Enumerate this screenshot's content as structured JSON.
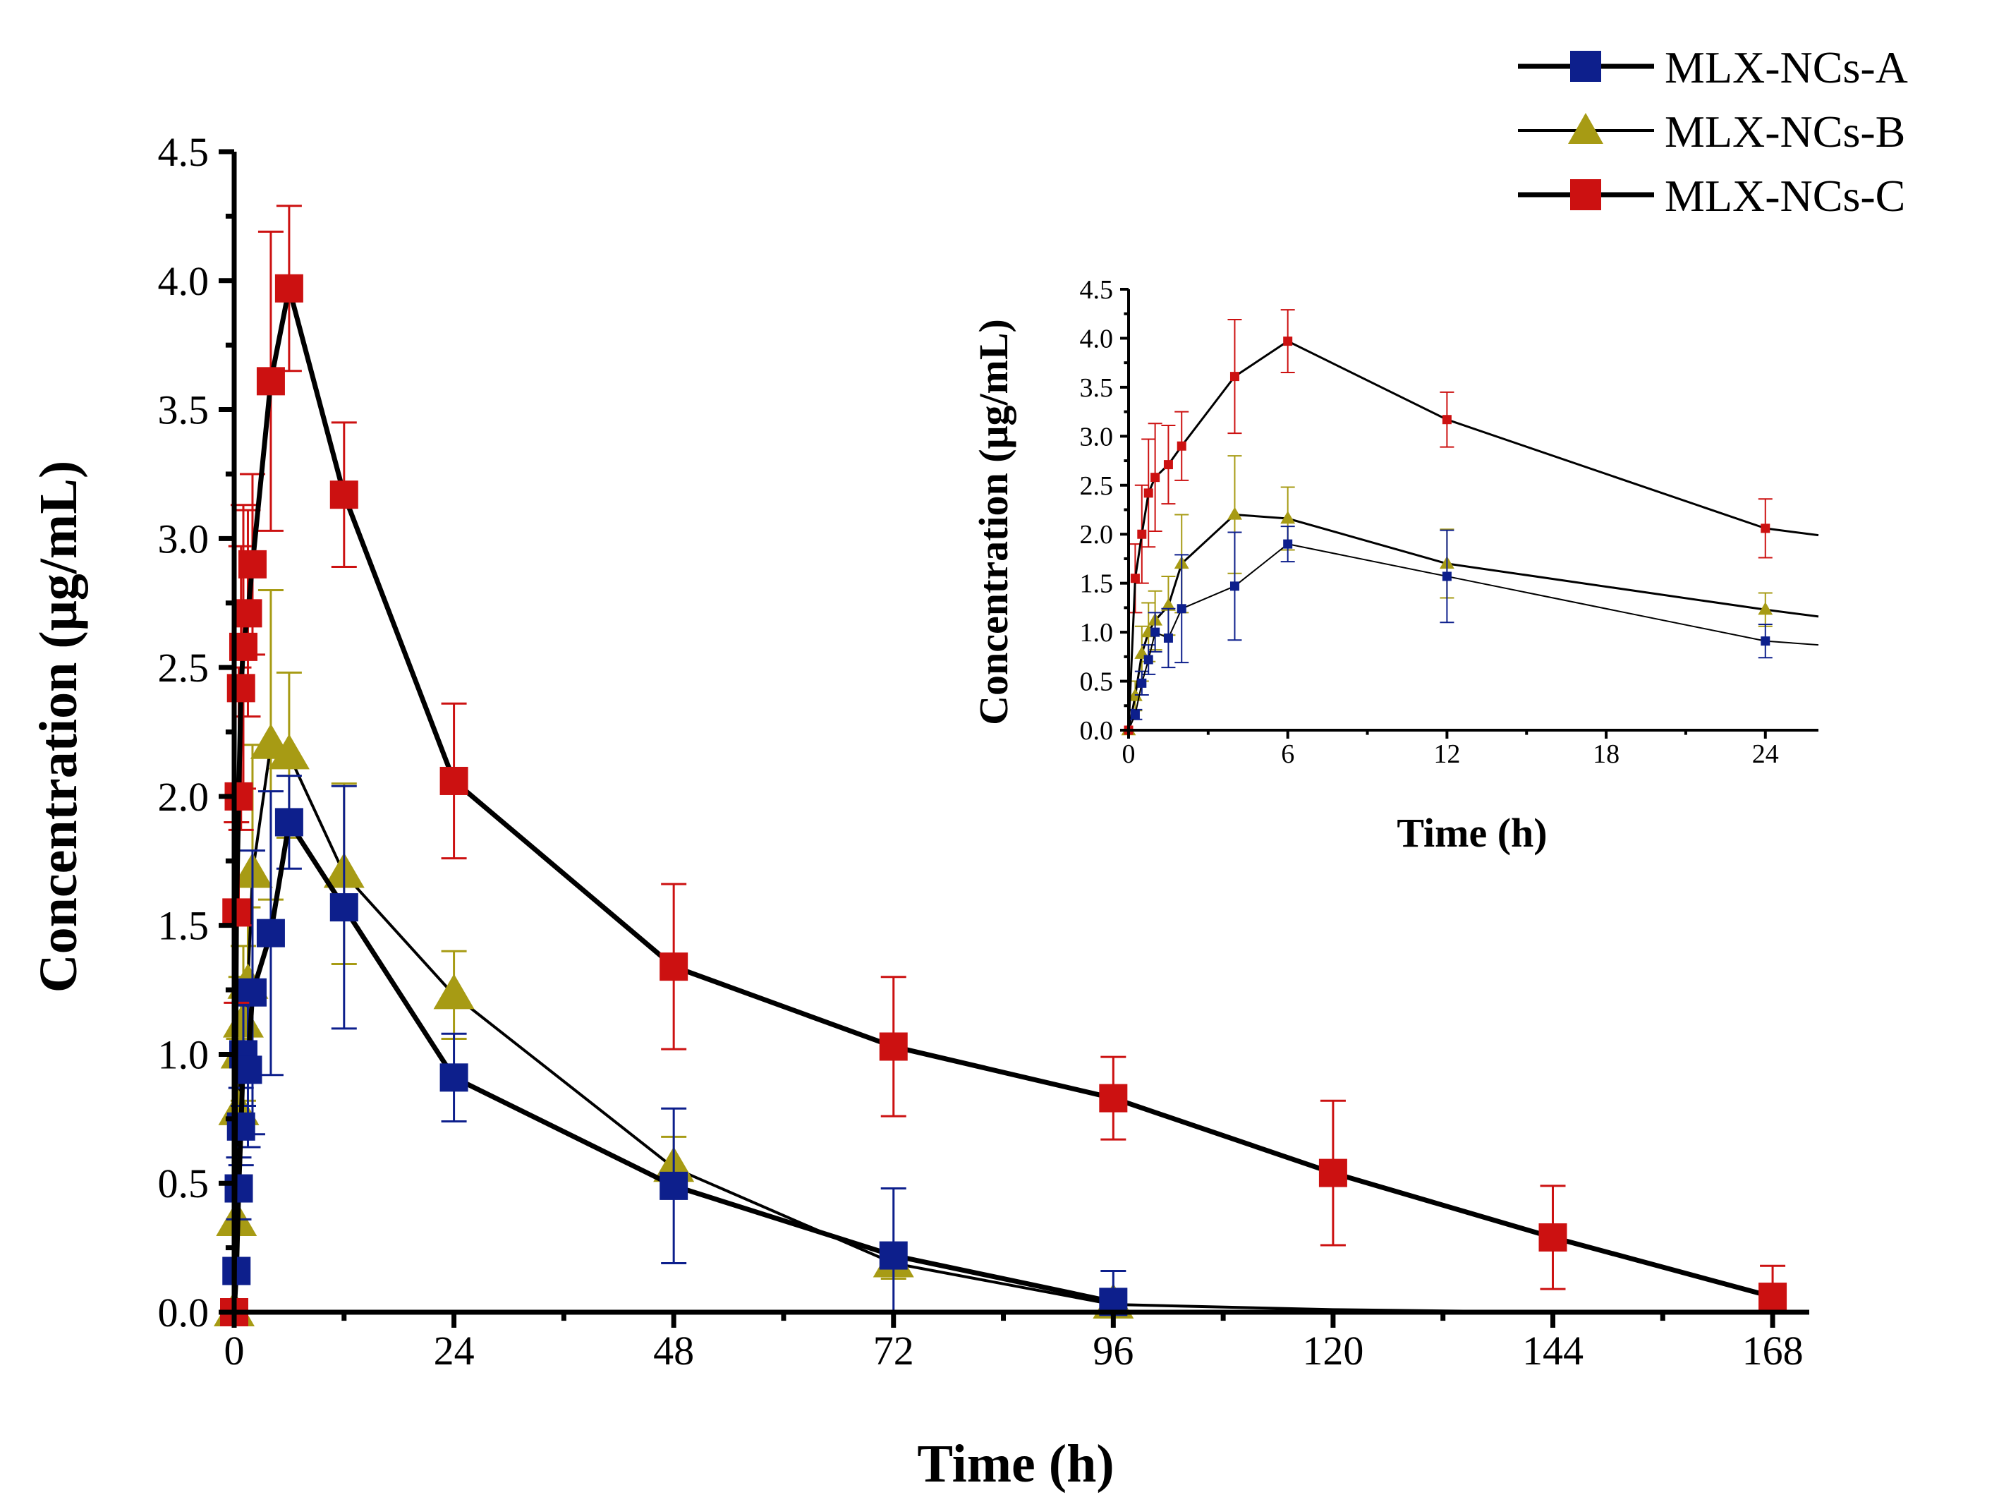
{
  "colors": {
    "A": "#0d1f8c",
    "B": "#a79b14",
    "C": "#cc1111",
    "line": "#000000"
  },
  "chart_data": [
    {
      "id": "main",
      "type": "line",
      "title": "",
      "xlabel": "Time (h)",
      "ylabel": "Concentration (μg/mL)",
      "xlim": [
        0,
        172
      ],
      "ylim": [
        0,
        4.5
      ],
      "xticks": [
        0,
        24,
        48,
        72,
        96,
        120,
        144,
        168
      ],
      "xtick_labels": [
        "0",
        "24",
        "48",
        "72",
        "96",
        "120",
        "144",
        "168"
      ],
      "yticks": [
        0,
        0.5,
        1,
        1.5,
        2,
        2.5,
        3,
        3.5,
        4,
        4.5
      ],
      "ytick_labels": [
        "0.0",
        "0.5",
        "1.0",
        "1.5",
        "2.0",
        "2.5",
        "3.0",
        "3.5",
        "4.0",
        "4.5"
      ],
      "legend_position": "top-right",
      "grid": false,
      "series": [
        {
          "name": "MLX-NCs-A",
          "marker": "square",
          "x": [
            0,
            0.25,
            0.5,
            0.75,
            1,
            1.5,
            2,
            4,
            6,
            12,
            24,
            48,
            72,
            96
          ],
          "values": [
            0.0,
            0.16,
            0.48,
            0.72,
            1.0,
            0.94,
            1.24,
            1.47,
            1.9,
            1.57,
            0.91,
            0.49,
            0.22,
            0.04
          ],
          "errors": [
            0.0,
            0.05,
            0.12,
            0.15,
            0.2,
            0.3,
            0.55,
            0.55,
            0.18,
            0.47,
            0.17,
            0.3,
            0.26,
            0.12
          ]
        },
        {
          "name": "MLX-NCs-B",
          "marker": "triangle",
          "x": [
            0,
            0.25,
            0.5,
            0.75,
            1,
            1.5,
            2,
            4,
            6,
            12,
            24,
            48,
            72,
            96,
            120,
            144,
            168
          ],
          "values": [
            0.0,
            0.35,
            0.78,
            1.0,
            1.12,
            1.27,
            1.7,
            2.2,
            2.16,
            1.7,
            1.23,
            0.56,
            0.19,
            0.03,
            0.01,
            0.0,
            0.0
          ],
          "errors": [
            0.0,
            0.15,
            0.28,
            0.3,
            0.3,
            0.3,
            0.5,
            0.6,
            0.32,
            0.35,
            0.17,
            0.12,
            0.06,
            0.03,
            0.0,
            0.0,
            0.0
          ]
        },
        {
          "name": "MLX-NCs-C",
          "marker": "square",
          "x": [
            0,
            0.25,
            0.5,
            0.75,
            1,
            1.5,
            2,
            4,
            6,
            12,
            24,
            48,
            72,
            96,
            120,
            144,
            168
          ],
          "values": [
            0.0,
            1.55,
            2.0,
            2.42,
            2.58,
            2.71,
            2.9,
            3.61,
            3.97,
            3.17,
            2.06,
            1.34,
            1.03,
            0.83,
            0.54,
            0.29,
            0.06
          ],
          "errors": [
            0.0,
            0.35,
            0.5,
            0.55,
            0.55,
            0.4,
            0.35,
            0.58,
            0.32,
            0.28,
            0.3,
            0.32,
            0.27,
            0.16,
            0.28,
            0.2,
            0.12
          ]
        }
      ]
    },
    {
      "id": "inset",
      "type": "line",
      "title": "",
      "xlabel": "Time (h)",
      "ylabel": "Concentration (μg/mL)",
      "xlim": [
        0,
        26
      ],
      "ylim": [
        0,
        4.5
      ],
      "xticks": [
        0,
        6,
        12,
        18,
        24
      ],
      "xtick_labels": [
        "0",
        "6",
        "12",
        "18",
        "24"
      ],
      "yticks": [
        0,
        0.5,
        1,
        1.5,
        2,
        2.5,
        3,
        3.5,
        4,
        4.5
      ],
      "ytick_labels": [
        "0.0",
        "0.5",
        "1.0",
        "1.5",
        "2.0",
        "2.5",
        "3.0",
        "3.5",
        "4.0",
        "4.5"
      ],
      "grid": false,
      "series": [
        {
          "name": "MLX-NCs-A",
          "marker": "square",
          "x": [
            0,
            0.25,
            0.5,
            0.75,
            1,
            1.5,
            2,
            4,
            6,
            12,
            24,
            26
          ],
          "values": [
            0.0,
            0.16,
            0.48,
            0.72,
            1.0,
            0.94,
            1.24,
            1.47,
            1.9,
            1.57,
            0.91,
            0.87
          ],
          "errors": [
            0.0,
            0.05,
            0.12,
            0.15,
            0.2,
            0.3,
            0.55,
            0.55,
            0.18,
            0.47,
            0.17,
            0.0
          ]
        },
        {
          "name": "MLX-NCs-B",
          "marker": "triangle",
          "x": [
            0,
            0.25,
            0.5,
            0.75,
            1,
            1.5,
            2,
            4,
            6,
            12,
            24,
            26
          ],
          "values": [
            0.0,
            0.35,
            0.78,
            1.0,
            1.12,
            1.27,
            1.7,
            2.2,
            2.16,
            1.7,
            1.23,
            1.16
          ],
          "errors": [
            0.0,
            0.15,
            0.28,
            0.3,
            0.3,
            0.3,
            0.5,
            0.6,
            0.32,
            0.35,
            0.17,
            0.0
          ]
        },
        {
          "name": "MLX-NCs-C",
          "marker": "square",
          "x": [
            0,
            0.25,
            0.5,
            0.75,
            1,
            1.5,
            2,
            4,
            6,
            12,
            24,
            26
          ],
          "values": [
            0.0,
            1.55,
            2.0,
            2.42,
            2.58,
            2.71,
            2.9,
            3.61,
            3.97,
            3.17,
            2.06,
            1.99
          ],
          "errors": [
            0.0,
            0.35,
            0.5,
            0.55,
            0.55,
            0.4,
            0.35,
            0.58,
            0.32,
            0.28,
            0.3,
            0.0
          ]
        }
      ]
    }
  ]
}
